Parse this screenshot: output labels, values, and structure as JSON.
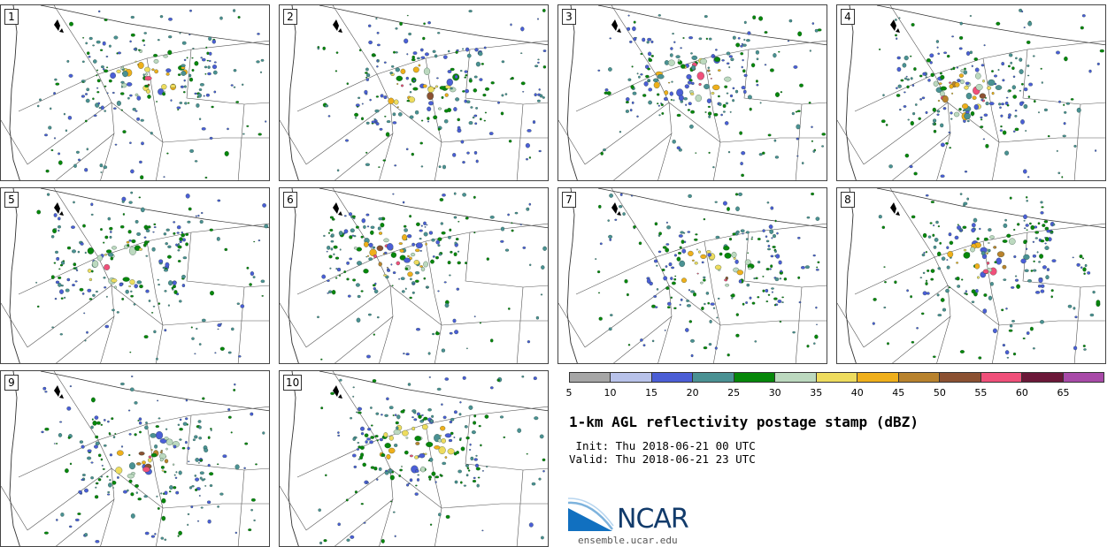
{
  "panels": [
    {
      "label": "1"
    },
    {
      "label": "2"
    },
    {
      "label": "3"
    },
    {
      "label": "4"
    },
    {
      "label": "5"
    },
    {
      "label": "6"
    },
    {
      "label": "7"
    },
    {
      "label": "8"
    },
    {
      "label": "9"
    },
    {
      "label": "10"
    }
  ],
  "colorbar": {
    "colors": [
      "#a6a6a6",
      "#b8c2ea",
      "#4b5ed6",
      "#4a9193",
      "#06870a",
      "#bcd9bf",
      "#eedc5e",
      "#efaf1b",
      "#b8822d",
      "#8b5132",
      "#f0507a",
      "#6b1838",
      "#a84aa8"
    ],
    "ticks": [
      "5",
      "10",
      "15",
      "20",
      "25",
      "30",
      "35",
      "40",
      "45",
      "50",
      "55",
      "60",
      "65"
    ]
  },
  "title": "1-km AGL reflectivity postage stamp (dBZ)",
  "init_line": " Init: Thu 2018-06-21 00 UTC",
  "valid_line": "Valid: Thu 2018-06-21 23 UTC",
  "logo": {
    "text": "NCAR",
    "url": "ensemble.ucar.edu",
    "color_blue": "#1170c0",
    "color_navy": "#123b6b"
  }
}
